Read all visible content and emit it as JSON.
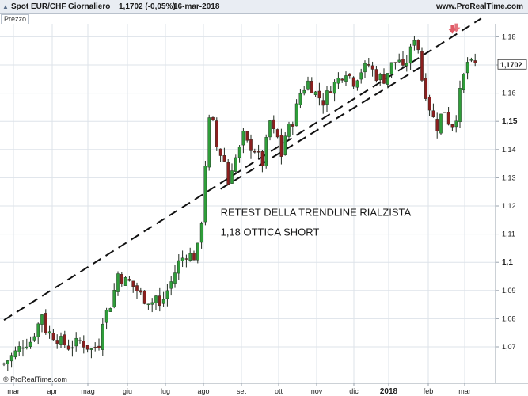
{
  "header": {
    "instrument": "Spot EUR/CHF",
    "timeframe": "Giornaliero",
    "last_quote": "1,1702 (-0,05%)",
    "date": "16-mar-2018",
    "site": "www.ProRealTime.com"
  },
  "legend": {
    "label": "Prezzo"
  },
  "footer": {
    "copyright": "© ProRealTime.com"
  },
  "chart_data": {
    "type": "candlestick",
    "ylim": [
      1.06,
      1.19
    ],
    "y_ticks": [
      {
        "value": 1.07,
        "label": "1,07",
        "bold": false
      },
      {
        "value": 1.08,
        "label": "1,08",
        "bold": false
      },
      {
        "value": 1.09,
        "label": "1,09",
        "bold": false
      },
      {
        "value": 1.1,
        "label": "1,1",
        "bold": true
      },
      {
        "value": 1.11,
        "label": "1,11",
        "bold": false
      },
      {
        "value": 1.12,
        "label": "1,12",
        "bold": false
      },
      {
        "value": 1.13,
        "label": "1,13",
        "bold": false
      },
      {
        "value": 1.14,
        "label": "1,14",
        "bold": false
      },
      {
        "value": 1.15,
        "label": "1,15",
        "bold": true
      },
      {
        "value": 1.16,
        "label": "1,16",
        "bold": false
      },
      {
        "value": 1.17,
        "label": "1,17",
        "bold": false
      },
      {
        "value": 1.18,
        "label": "1,18",
        "bold": false
      }
    ],
    "x_ticks": [
      {
        "label": "mar",
        "bold": false
      },
      {
        "label": "apr",
        "bold": false
      },
      {
        "label": "mag",
        "bold": false
      },
      {
        "label": "giu",
        "bold": false
      },
      {
        "label": "lug",
        "bold": false
      },
      {
        "label": "ago",
        "bold": false
      },
      {
        "label": "set",
        "bold": false
      },
      {
        "label": "ott",
        "bold": false
      },
      {
        "label": "nov",
        "bold": false
      },
      {
        "label": "dic",
        "bold": false
      },
      {
        "label": "2018",
        "bold": true
      },
      {
        "label": "feb",
        "bold": false
      },
      {
        "label": "mar",
        "bold": false
      }
    ],
    "last_price": {
      "value": 1.1702,
      "label": "1,1702"
    },
    "price_path": [
      [
        0,
        1.064
      ],
      [
        3,
        1.068
      ],
      [
        5,
        1.071
      ],
      [
        7,
        1.072
      ],
      [
        9,
        1.078
      ],
      [
        10,
        1.082
      ],
      [
        11,
        1.076
      ],
      [
        14,
        1.073
      ],
      [
        17,
        1.07
      ],
      [
        20,
        1.072
      ],
      [
        23,
        1.069
      ],
      [
        25,
        1.071
      ],
      [
        26,
        1.08
      ],
      [
        28,
        1.085
      ],
      [
        29,
        1.09
      ],
      [
        30,
        1.096
      ],
      [
        31,
        1.094
      ],
      [
        33,
        1.093
      ],
      [
        35,
        1.09
      ],
      [
        37,
        1.087
      ],
      [
        39,
        1.086
      ],
      [
        40,
        1.088
      ],
      [
        41,
        1.084
      ],
      [
        42,
        1.087
      ],
      [
        44,
        1.093
      ],
      [
        46,
        1.1
      ],
      [
        48,
        1.103
      ],
      [
        50,
        1.102
      ],
      [
        51,
        1.105
      ],
      [
        52,
        1.115
      ],
      [
        53,
        1.135
      ],
      [
        54,
        1.15
      ],
      [
        55,
        1.149
      ],
      [
        56,
        1.141
      ],
      [
        58,
        1.136
      ],
      [
        59,
        1.128
      ],
      [
        60,
        1.134
      ],
      [
        62,
        1.14
      ],
      [
        63,
        1.145
      ],
      [
        64,
        1.142
      ],
      [
        66,
        1.14
      ],
      [
        68,
        1.135
      ],
      [
        70,
        1.15
      ],
      [
        71,
        1.146
      ],
      [
        72,
        1.144
      ],
      [
        73,
        1.138
      ],
      [
        74,
        1.145
      ],
      [
        76,
        1.15
      ],
      [
        78,
        1.16
      ],
      [
        80,
        1.164
      ],
      [
        82,
        1.16
      ],
      [
        84,
        1.157
      ],
      [
        86,
        1.162
      ],
      [
        88,
        1.165
      ],
      [
        90,
        1.168
      ],
      [
        92,
        1.164
      ],
      [
        94,
        1.168
      ],
      [
        96,
        1.17
      ],
      [
        98,
        1.166
      ],
      [
        100,
        1.165
      ],
      [
        102,
        1.17
      ],
      [
        104,
        1.172
      ],
      [
        105,
        1.168
      ],
      [
        107,
        1.175
      ],
      [
        108,
        1.18
      ],
      [
        109,
        1.176
      ],
      [
        110,
        1.165
      ],
      [
        111,
        1.16
      ],
      [
        112,
        1.155
      ],
      [
        113,
        1.151
      ],
      [
        114,
        1.148
      ],
      [
        115,
        1.152
      ],
      [
        116,
        1.154
      ],
      [
        117,
        1.15
      ],
      [
        118,
        1.149
      ],
      [
        119,
        1.152
      ],
      [
        120,
        1.16
      ],
      [
        121,
        1.166
      ],
      [
        122,
        1.171
      ],
      [
        123,
        1.17
      ],
      [
        124,
        1.17
      ]
    ],
    "trendlines": [
      {
        "from": [
          0,
          1.0795
        ],
        "to": [
          125.6,
          1.1865
        ],
        "style": "dashed"
      },
      {
        "from": [
          57,
          1.126
        ],
        "to": [
          110,
          1.1695
        ],
        "style": "dashed"
      }
    ],
    "annotations": [
      {
        "text": "RETEST DELLA TRENDLINE RIALZISTA",
        "x": 59.5,
        "y": 1.1165
      },
      {
        "text": "1,18 OTTICA SHORT",
        "x": 59.5,
        "y": 1.1095
      }
    ],
    "markers": [
      {
        "type": "down-arrow",
        "x": 118,
        "y": 1.1822,
        "color": "#e05a66"
      }
    ]
  }
}
